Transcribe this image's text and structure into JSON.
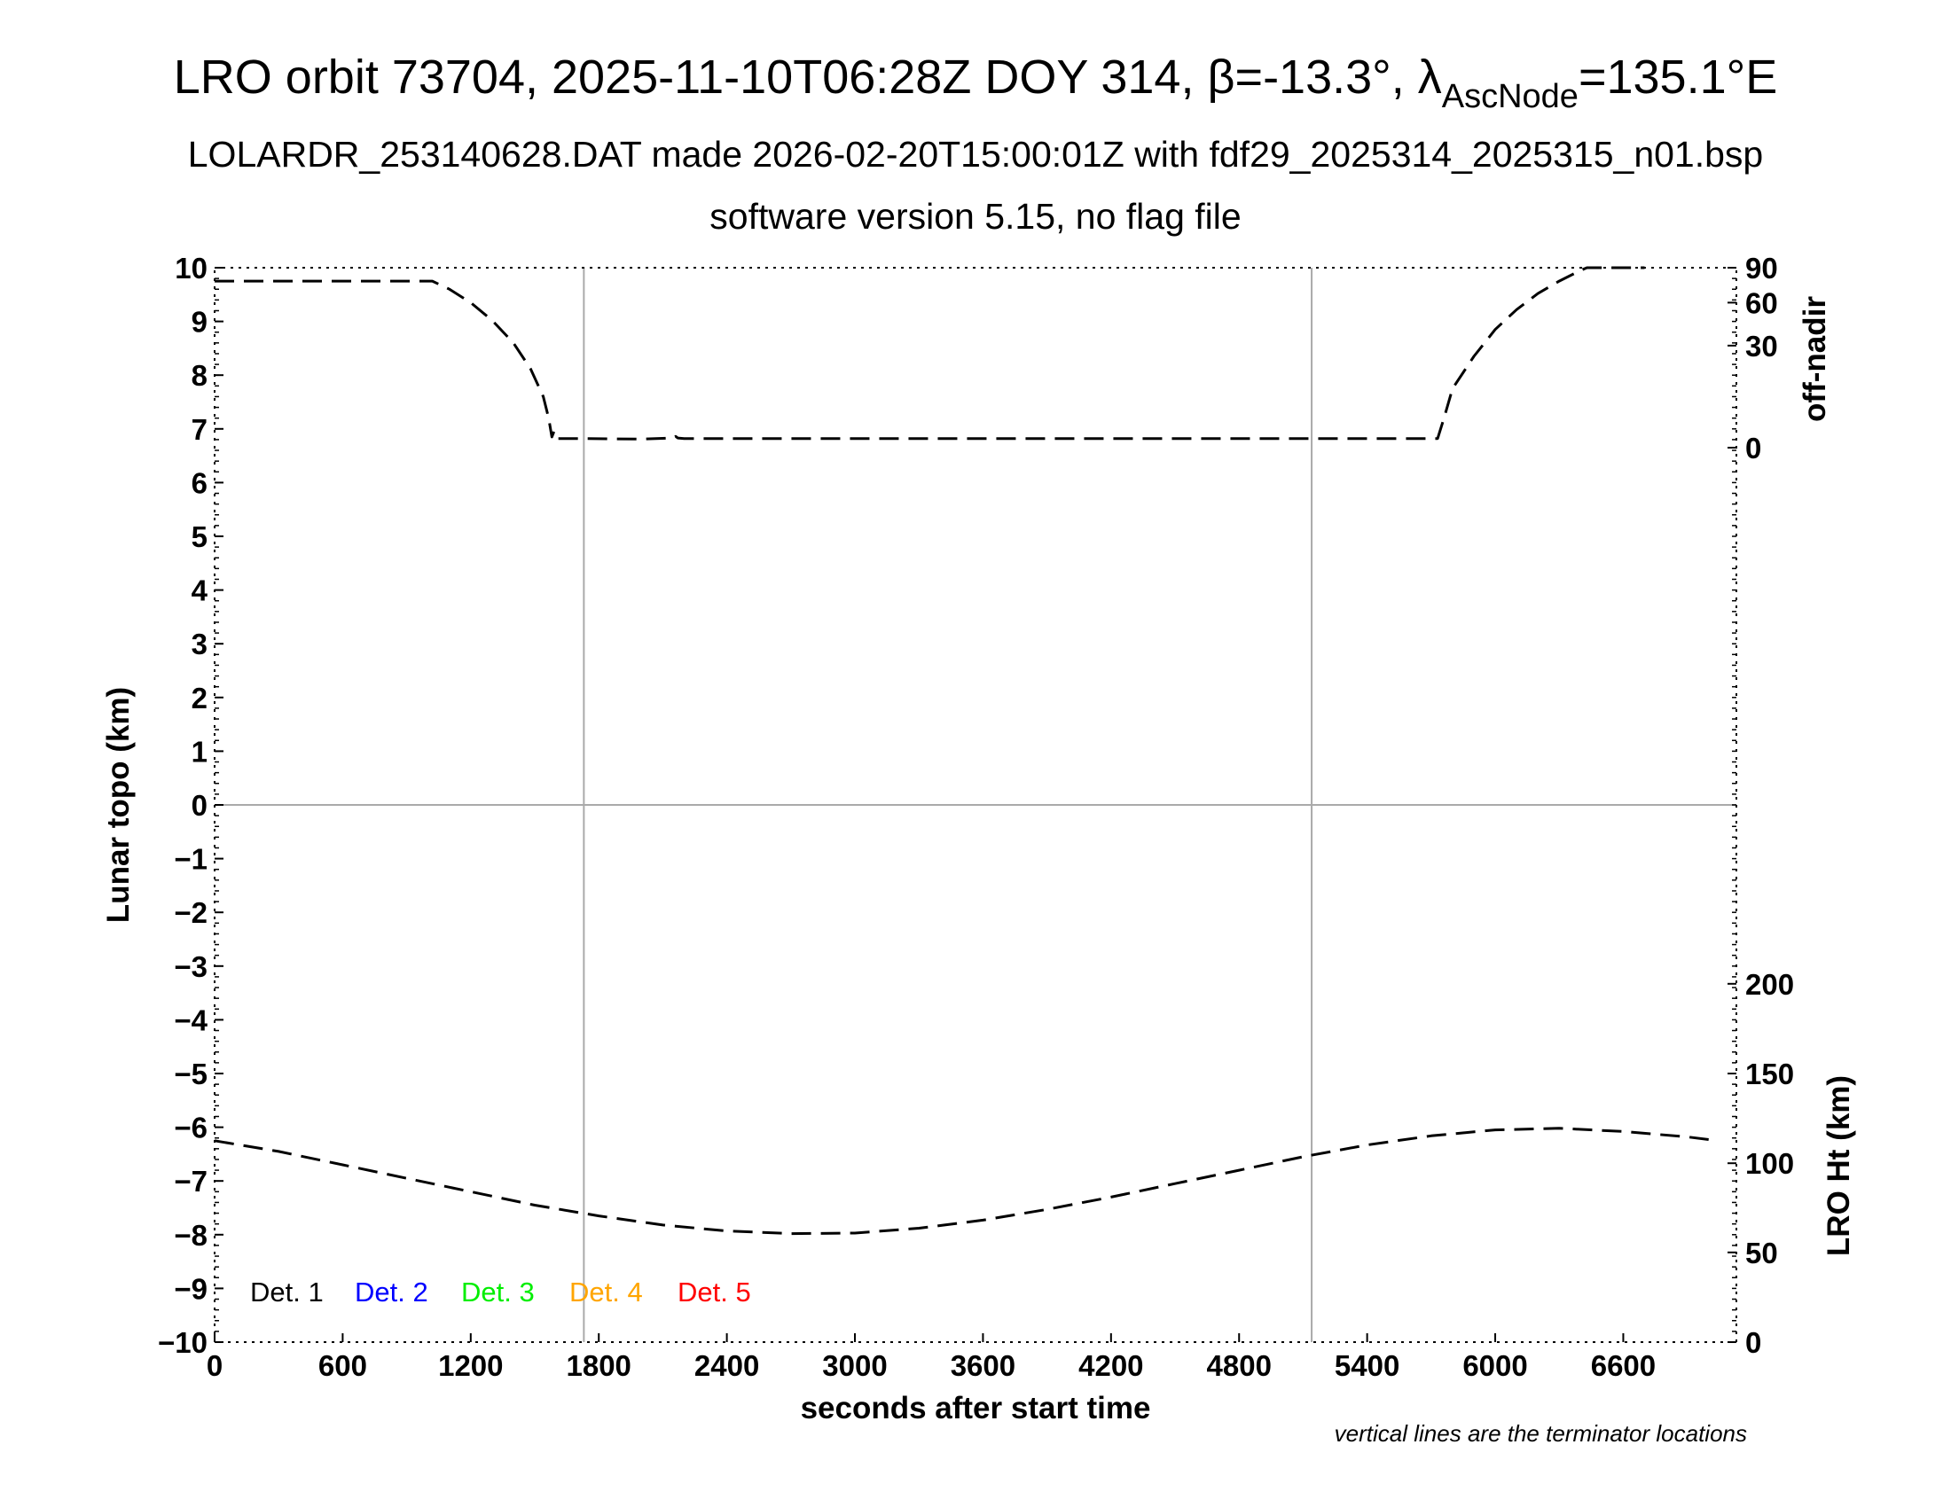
{
  "chart_data": {
    "type": "line",
    "title": {
      "main": "LRO orbit 73704, 2025-11-10T06:28Z DOY 314, β=-13.3°, λ",
      "sub": "AscNode",
      "end": "=135.1°E"
    },
    "subtitle": "LOLARDR_253140628.DAT made 2026-02-20T15:00:01Z with fdf29_2025314_2025315_n01.bsp",
    "subtitle2": "software version 5.15, no flag file",
    "xlabel": "seconds after start time",
    "ylabel": "Lunar topo (km)",
    "ylabel_right_top": "off-nadir",
    "ylabel_right_bottom": "LRO Ht (km)",
    "note": "vertical lines are the terminator locations",
    "xlim": [
      0,
      7130
    ],
    "ylim": [
      -10,
      10
    ],
    "x_ticks": [
      0,
      600,
      1200,
      1800,
      2400,
      3000,
      3600,
      4200,
      4800,
      5400,
      6000,
      6600
    ],
    "y_ticks": [
      10,
      9,
      8,
      7,
      6,
      5,
      4,
      3,
      2,
      1,
      0,
      -1,
      -2,
      -3,
      -4,
      -5,
      -6,
      -7,
      -8,
      -9,
      -10
    ],
    "y_tick_labels": [
      "10",
      "9",
      "8",
      "7",
      "6",
      "5",
      "4",
      "3",
      "2",
      "1",
      "0",
      "−1",
      "−2",
      "−3",
      "−4",
      "−5",
      "−6",
      "−7",
      "−8",
      "−9",
      "−10"
    ],
    "offnadir_ticks": [
      {
        "label": "90",
        "y": 10.0
      },
      {
        "label": "60",
        "y": 9.35
      },
      {
        "label": "30",
        "y": 8.55
      },
      {
        "label": "0",
        "y": 6.65
      }
    ],
    "ht_ticks": [
      {
        "label": "200",
        "y": -3.33
      },
      {
        "label": "150",
        "y": -5.0
      },
      {
        "label": "100",
        "y": -6.67
      },
      {
        "label": "50",
        "y": -8.33
      },
      {
        "label": "0",
        "y": -10.0
      }
    ],
    "terminators": [
      1730,
      5140
    ],
    "series": [
      {
        "name": "off-nadir",
        "x": [
          0,
          1000,
          1020,
          1100,
          1200,
          1300,
          1400,
          1480,
          1540,
          1565,
          1580,
          1590,
          1600,
          1700,
          2000,
          2150,
          2160,
          2170,
          2200,
          3000,
          4000,
          5000,
          5700,
          5730,
          5760,
          5800,
          5900,
          6000,
          6100,
          6200,
          6300,
          6400,
          6430,
          6500,
          6600,
          6700
        ],
        "y": [
          9.75,
          9.75,
          9.75,
          9.6,
          9.35,
          9.02,
          8.6,
          8.12,
          7.6,
          7.2,
          6.85,
          6.95,
          6.82,
          6.82,
          6.81,
          6.83,
          6.86,
          6.83,
          6.82,
          6.82,
          6.82,
          6.82,
          6.82,
          6.82,
          7.2,
          7.75,
          8.35,
          8.85,
          9.22,
          9.52,
          9.75,
          9.95,
          10.0,
          10.0,
          10.0,
          10.0
        ]
      },
      {
        "name": "LRO Ht",
        "x": [
          0,
          300,
          600,
          900,
          1200,
          1500,
          1800,
          2100,
          2400,
          2700,
          3000,
          3300,
          3600,
          3900,
          4200,
          4500,
          4800,
          5100,
          5400,
          5700,
          6000,
          6300,
          6600,
          6900,
          7000
        ],
        "y": [
          -6.25,
          -6.45,
          -6.7,
          -6.95,
          -7.2,
          -7.45,
          -7.65,
          -7.82,
          -7.93,
          -7.98,
          -7.97,
          -7.88,
          -7.73,
          -7.53,
          -7.3,
          -7.05,
          -6.8,
          -6.55,
          -6.33,
          -6.16,
          -6.05,
          -6.02,
          -6.08,
          -6.18,
          -6.23
        ]
      }
    ],
    "legend": [
      {
        "name": "Det. 1",
        "color": "#000000"
      },
      {
        "name": "Det. 2",
        "color": "#0000ff"
      },
      {
        "name": "Det. 3",
        "color": "#00ee00"
      },
      {
        "name": "Det. 4",
        "color": "#ffa500"
      },
      {
        "name": "Det. 5",
        "color": "#ff0000"
      }
    ]
  }
}
